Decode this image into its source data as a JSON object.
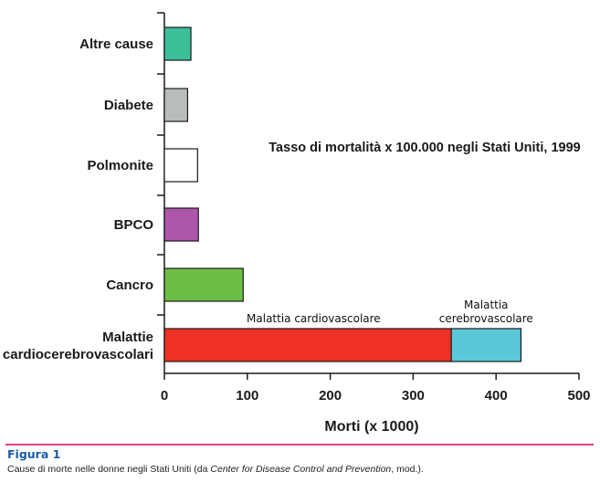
{
  "chart_data": {
    "type": "bar",
    "orientation": "horizontal",
    "stacked": true,
    "categories": [
      "Altre cause",
      "Diabete",
      "Polmonite",
      "BPCO",
      "Cancro",
      "Malattie cardiocerebrovascolari"
    ],
    "category_lines": [
      [
        "Altre cause"
      ],
      [
        "Diabete"
      ],
      [
        "Polmonite"
      ],
      [
        "BPCO"
      ],
      [
        "Cancro"
      ],
      [
        "Malattie",
        "cardiocerebrovascolari"
      ]
    ],
    "values": [
      32,
      28,
      40,
      41,
      95,
      430
    ],
    "colors": [
      "#3dbf9a",
      "#b9bcbc",
      "#ffffff",
      "#ad55a8",
      "#6cbe45",
      "#ee3124"
    ],
    "stacked_bar": {
      "category": "Malattie cardiocerebrovascolari",
      "segments": [
        {
          "name": "Malattia cardiovascolare",
          "value": 346,
          "color": "#ee3124"
        },
        {
          "name": "Malattia cerebrovascolare",
          "name_lines": [
            "Malattia",
            "cerebrovascolare"
          ],
          "value": 84,
          "color": "#5bc8da"
        }
      ]
    },
    "annotation": "Tasso di mortalità x 100.000 negli Stati Uniti, 1999",
    "xlabel": "Morti (x 1000)",
    "ylabel": "",
    "xlim": [
      0,
      500
    ],
    "xticks": [
      0,
      100,
      200,
      300,
      400,
      500
    ],
    "grid": false
  },
  "figure": {
    "title": "Figura 1",
    "caption_before": "Cause di morte nelle donne negli Stati Uniti (da ",
    "caption_italic": "Center for Disease Control and Prevention",
    "caption_after": ", mod.)."
  },
  "colors": {
    "rule": "#e0457b",
    "figure_title": "#1a5fa8"
  }
}
